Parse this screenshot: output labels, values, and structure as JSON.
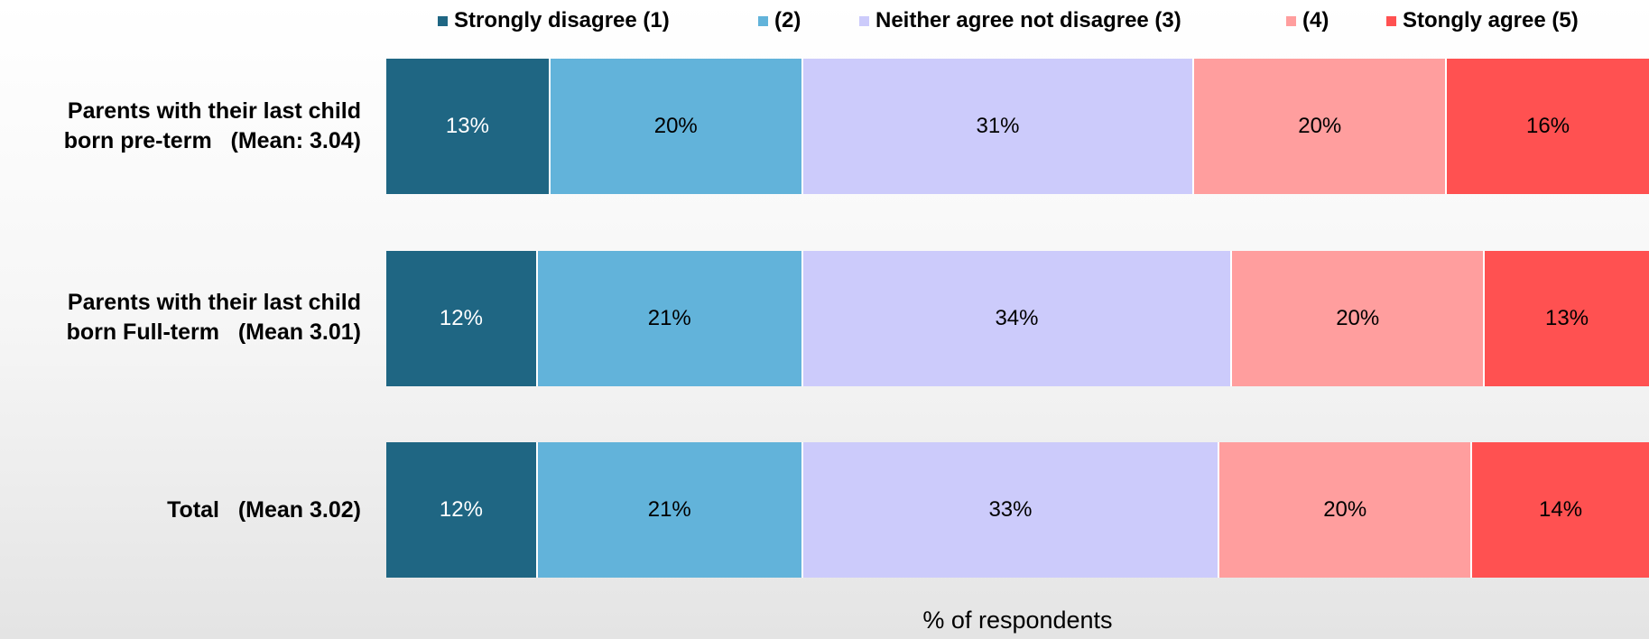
{
  "chart_data": {
    "type": "bar",
    "orientation": "horizontal",
    "stacked": true,
    "categories": [
      [
        "Parents with their last child",
        "born pre-term   (Mean: 3.04)"
      ],
      [
        "Parents with their last child",
        "born Full-term   (Mean 3.01)"
      ],
      [
        "Total   (Mean 3.02)"
      ]
    ],
    "series": [
      {
        "name": "Strongly disagree (1)",
        "color": "#1f6683",
        "values": [
          13,
          12,
          12
        ]
      },
      {
        "name": "(2)",
        "color": "#62b3da",
        "values": [
          20,
          21,
          21
        ]
      },
      {
        "name": "Neither agree not disagree (3)",
        "color": "#cccbfb",
        "values": [
          31,
          34,
          33
        ]
      },
      {
        "name": "(4)",
        "color": "#ff9e9e",
        "values": [
          20,
          20,
          20
        ]
      },
      {
        "name": "Stongly agree (5)",
        "color": "#ff5151",
        "values": [
          16,
          13,
          14
        ]
      }
    ],
    "data_labels": [
      [
        "13%",
        "12%",
        "12%"
      ],
      [
        "20%",
        "21%",
        "21%"
      ],
      [
        "31%",
        "34%",
        "33%"
      ],
      [
        "20%",
        "20%",
        "20%"
      ],
      [
        "16%",
        "13%",
        "14%"
      ]
    ],
    "xlabel": "% of respondents",
    "legend_position": "top",
    "grid": false
  }
}
